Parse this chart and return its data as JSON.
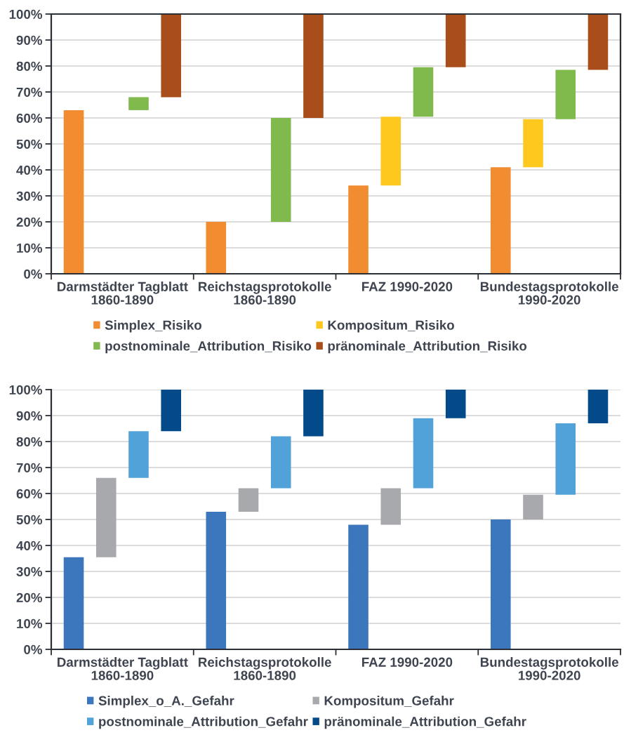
{
  "chart_data": [
    {
      "type": "bar",
      "categories": [
        "Darmstädter Tagblatt\n1860-1890",
        "Reichstagsprotokolle\n1860-1890",
        "FAZ 1990-2020",
        "Bundestagsprotokolle\n1990-2020"
      ],
      "series": [
        {
          "name": "Simplex_Risiko",
          "color": "#f28c30",
          "values": [
            63,
            20,
            34,
            41
          ]
        },
        {
          "name": "Kompositum_Risiko",
          "color": "#ffc81e",
          "base": [
            null,
            null,
            34,
            41
          ],
          "values": [
            null,
            null,
            26.5,
            18.5
          ]
        },
        {
          "name": "postnominale_Attribution_Risiko",
          "color": "#80b94c",
          "base": [
            63,
            20,
            60.5,
            59.5
          ],
          "values": [
            5,
            40,
            19,
            19
          ]
        },
        {
          "name": "pränominale_Attribution_Risiko",
          "color": "#a94e1a",
          "base": [
            68,
            60,
            79.5,
            78.5
          ],
          "values": [
            32,
            40,
            20.5,
            21.5
          ]
        }
      ],
      "ylim": [
        0,
        100
      ],
      "yticks": [
        {
          "value": 0,
          "label": "0%"
        },
        {
          "value": 10,
          "label": "10%"
        },
        {
          "value": 20,
          "label": "20%"
        },
        {
          "value": 30,
          "label": "30%"
        },
        {
          "value": 40,
          "label": "40%"
        },
        {
          "value": 50,
          "label": "50%"
        },
        {
          "value": 60,
          "label": "60%"
        },
        {
          "value": 70,
          "label": "70%"
        },
        {
          "value": 80,
          "label": "80%"
        },
        {
          "value": 90,
          "label": "90%"
        },
        {
          "value": 100,
          "label": "100%"
        }
      ],
      "grid": "y",
      "legend": "bottom"
    },
    {
      "type": "bar",
      "categories": [
        "Darmstädter Tagblatt\n1860-1890",
        "Reichstagsprotokolle\n1860-1890",
        "FAZ 1990-2020",
        "Bundestagsprotokolle\n1990-2020"
      ],
      "series": [
        {
          "name": "Simplex_o_A._Gefahr",
          "color": "#3c76bd",
          "values": [
            35.5,
            53,
            48,
            50
          ]
        },
        {
          "name": "Kompositum_Gefahr",
          "color": "#a8a9ad",
          "base": [
            35.5,
            53,
            48,
            50
          ],
          "values": [
            30.5,
            9,
            14,
            9.5
          ]
        },
        {
          "name": "postnominale_Attribution_Gefahr",
          "color": "#52a2da",
          "base": [
            66,
            62,
            62,
            59.5
          ],
          "values": [
            18,
            20,
            27,
            27.5
          ]
        },
        {
          "name": "pränominale_Attribution_Gefahr",
          "color": "#034a8a",
          "base": [
            84,
            82,
            89,
            87
          ],
          "values": [
            16,
            18,
            11,
            13
          ]
        }
      ],
      "ylim": [
        0,
        100
      ],
      "yticks": [
        {
          "value": 0,
          "label": "0%"
        },
        {
          "value": 10,
          "label": "10%"
        },
        {
          "value": 20,
          "label": "20%"
        },
        {
          "value": 30,
          "label": "30%"
        },
        {
          "value": 40,
          "label": "40%"
        },
        {
          "value": 50,
          "label": "50%"
        },
        {
          "value": 60,
          "label": "60%"
        },
        {
          "value": 70,
          "label": "70%"
        },
        {
          "value": 80,
          "label": "80%"
        },
        {
          "value": 90,
          "label": "90%"
        },
        {
          "value": 100,
          "label": "100%"
        }
      ],
      "grid": "y",
      "legend": "bottom"
    }
  ]
}
